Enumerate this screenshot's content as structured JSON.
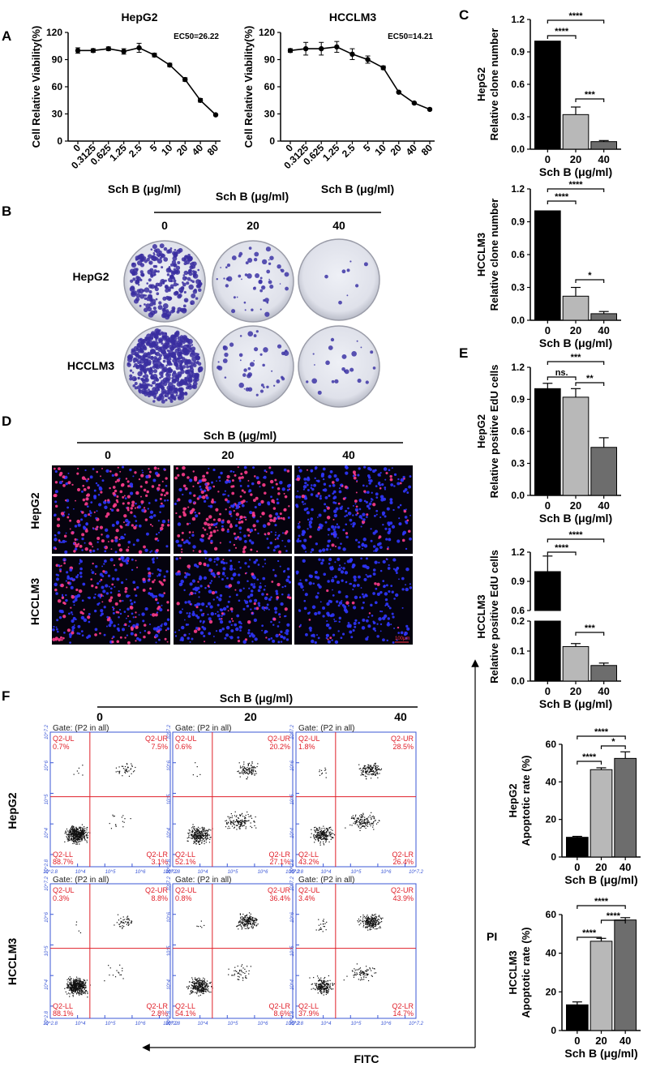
{
  "panel_letters": {
    "A": "A",
    "B": "B",
    "C": "C",
    "D": "D",
    "E": "E",
    "F": "F"
  },
  "treatment": {
    "label": "Sch B (μg/ml)",
    "doses": [
      "0",
      "20",
      "40"
    ]
  },
  "cell_lines": [
    "HepG2",
    "HCCLM3"
  ],
  "colony_label_x": "Sch B (μg/ml)",
  "flow": {
    "gate_label": "Gate: (P2 in all)",
    "quadrant_names": {
      "ul": "Q2-UL",
      "ur": "Q2-UR",
      "ll": "Q2-LL",
      "lr": "Q2-LR"
    },
    "x_axis_title": "FITC",
    "y_axis_title": "PI",
    "tick_labels": [
      "10^2.8",
      "10^4",
      "10^5",
      "10^6",
      "10^7.2"
    ],
    "rows": [
      {
        "cell_line": "HepG2",
        "plots": [
          {
            "dose": "0",
            "ul": "0.7%",
            "ur": "7.5%",
            "ll": "88.7%",
            "lr": "3.1%"
          },
          {
            "dose": "20",
            "ul": "0.6%",
            "ur": "20.2%",
            "ll": "52.1%",
            "lr": "27.1%"
          },
          {
            "dose": "40",
            "ul": "1.8%",
            "ur": "28.5%",
            "ll": "43.2%",
            "lr": "26.4%"
          }
        ]
      },
      {
        "cell_line": "HCCLM3",
        "plots": [
          {
            "dose": "0",
            "ul": "0.3%",
            "ur": "8.8%",
            "ll": "88.1%",
            "lr": "2.8%"
          },
          {
            "dose": "20",
            "ul": "0.8%",
            "ur": "36.4%",
            "ll": "54.1%",
            "lr": "8.6%"
          },
          {
            "dose": "40",
            "ul": "3.4%",
            "ur": "43.9%",
            "ll": "37.9%",
            "lr": "14.7%"
          }
        ]
      }
    ]
  },
  "scale_bar_label": "100μm",
  "chart_data": [
    {
      "id": "A1",
      "type": "line",
      "title": "HepG2",
      "annotation": "EC50=26.22",
      "xlabel": "Sch B (μg/ml)",
      "ylabel": "Cell Relative Viability(%)",
      "categories": [
        "0",
        "0.3125",
        "0.625",
        "1.25",
        "2.5",
        "5",
        "10",
        "20",
        "40",
        "80"
      ],
      "values": [
        100,
        100,
        102,
        99,
        103,
        95,
        84,
        68,
        45,
        29
      ],
      "errors": [
        3,
        2,
        2,
        3,
        5,
        2,
        2,
        2,
        2,
        1
      ],
      "ylim": [
        0,
        120
      ],
      "yticks": [
        0,
        30,
        60,
        90,
        120
      ]
    },
    {
      "id": "A2",
      "type": "line",
      "title": "HCCLM3",
      "annotation": "EC50=14.21",
      "xlabel": "Sch B (μg/ml)",
      "ylabel": "Cell Relative Viability(%)",
      "categories": [
        "0",
        "0.3125",
        "0.625",
        "1.25",
        "2.5",
        "5",
        "10",
        "20",
        "40",
        "80"
      ],
      "values": [
        100,
        102,
        102,
        104,
        96,
        90,
        81,
        54,
        42,
        35
      ],
      "errors": [
        2,
        7,
        7,
        6,
        6,
        4,
        2,
        1,
        1,
        1
      ],
      "ylim": [
        0,
        120
      ],
      "yticks": [
        0,
        30,
        60,
        90,
        120
      ]
    },
    {
      "id": "C1",
      "type": "bar",
      "cell_line": "HepG2",
      "xlabel": "Sch B (μg/ml)",
      "ylabel": "Relative clone number",
      "categories": [
        "0",
        "20",
        "40"
      ],
      "values": [
        1.0,
        0.32,
        0.07
      ],
      "errors": [
        0,
        0.07,
        0.01
      ],
      "ylim": [
        0,
        1.2
      ],
      "yticks": [
        "0.0",
        "0.3",
        "0.6",
        "0.9",
        "1.2"
      ],
      "colors": [
        "#000000",
        "#b8b8b8",
        "#6d6d6d"
      ],
      "significance": [
        {
          "from": 0,
          "to": 1,
          "label": "****"
        },
        {
          "from": 0,
          "to": 2,
          "label": "****"
        },
        {
          "from": 1,
          "to": 2,
          "label": "***"
        }
      ]
    },
    {
      "id": "C2",
      "type": "bar",
      "cell_line": "HCCLM3",
      "xlabel": "Sch B (μg/ml)",
      "ylabel": "Relative clone number",
      "categories": [
        "0",
        "20",
        "40"
      ],
      "values": [
        1.0,
        0.22,
        0.06
      ],
      "errors": [
        0,
        0.08,
        0.02
      ],
      "ylim": [
        0,
        1.2
      ],
      "yticks": [
        "0.0",
        "0.3",
        "0.6",
        "0.9",
        "1.2"
      ],
      "colors": [
        "#000000",
        "#b8b8b8",
        "#6d6d6d"
      ],
      "significance": [
        {
          "from": 0,
          "to": 1,
          "label": "****"
        },
        {
          "from": 0,
          "to": 2,
          "label": "****"
        },
        {
          "from": 1,
          "to": 2,
          "label": "*"
        }
      ]
    },
    {
      "id": "E1",
      "type": "bar",
      "cell_line": "HepG2",
      "xlabel": "Sch B (μg/ml)",
      "ylabel": "Relative positive EdU cells",
      "categories": [
        "0",
        "20",
        "40"
      ],
      "values": [
        1.0,
        0.92,
        0.45
      ],
      "errors": [
        0.05,
        0.08,
        0.09
      ],
      "ylim": [
        0,
        1.2
      ],
      "yticks": [
        "0.0",
        "0.3",
        "0.6",
        "0.9",
        "1.2"
      ],
      "colors": [
        "#000000",
        "#b8b8b8",
        "#6d6d6d"
      ],
      "significance": [
        {
          "from": 0,
          "to": 1,
          "label": "ns."
        },
        {
          "from": 0,
          "to": 2,
          "label": "***"
        },
        {
          "from": 1,
          "to": 2,
          "label": "**"
        }
      ]
    },
    {
      "id": "E2",
      "type": "bar",
      "cell_line": "HCCLM3",
      "broken_axis": true,
      "xlabel": "Sch B (μg/ml)",
      "ylabel": "Relative positive EdU cells",
      "categories": [
        "0",
        "20",
        "40"
      ],
      "values": [
        1.0,
        0.115,
        0.052
      ],
      "errors": [
        0.16,
        0.01,
        0.008
      ],
      "upper_ylim": [
        0.6,
        1.2
      ],
      "upper_yticks": [
        "0.6",
        "0.9",
        "1.2"
      ],
      "lower_ylim": [
        0,
        0.2
      ],
      "lower_yticks": [
        "0.0",
        "0.1",
        "0.2"
      ],
      "colors": [
        "#000000",
        "#b8b8b8",
        "#6d6d6d"
      ],
      "significance": [
        {
          "from": 0,
          "to": 1,
          "label": "****"
        },
        {
          "from": 0,
          "to": 2,
          "label": "****"
        },
        {
          "from": 1,
          "to": 2,
          "label": "***"
        }
      ]
    },
    {
      "id": "F1",
      "type": "bar",
      "cell_line": "HepG2",
      "xlabel": "Sch B (μg/ml)",
      "ylabel": "Apoptotic rate (%)",
      "categories": [
        "0",
        "20",
        "40"
      ],
      "values": [
        10.5,
        46.5,
        52.5
      ],
      "errors": [
        0.5,
        1,
        3.5
      ],
      "ylim": [
        0,
        60
      ],
      "yticks": [
        "0",
        "20",
        "40",
        "60"
      ],
      "colors": [
        "#000000",
        "#b8b8b8",
        "#6d6d6d"
      ],
      "significance": [
        {
          "from": 0,
          "to": 1,
          "label": "****"
        },
        {
          "from": 0,
          "to": 2,
          "label": "****"
        },
        {
          "from": 1,
          "to": 2,
          "label": "*"
        }
      ]
    },
    {
      "id": "F2",
      "type": "bar",
      "cell_line": "HCCLM3",
      "xlabel": "Sch B (μg/ml)",
      "ylabel": "Apoptotic rate (%)",
      "categories": [
        "0",
        "20",
        "40"
      ],
      "values": [
        13.3,
        46.2,
        57.2
      ],
      "errors": [
        1.5,
        1.5,
        1.2
      ],
      "ylim": [
        0,
        60
      ],
      "yticks": [
        "0",
        "20",
        "40",
        "60"
      ],
      "colors": [
        "#000000",
        "#b8b8b8",
        "#6d6d6d"
      ],
      "significance": [
        {
          "from": 0,
          "to": 1,
          "label": "****"
        },
        {
          "from": 0,
          "to": 2,
          "label": "****"
        },
        {
          "from": 1,
          "to": 2,
          "label": "****"
        }
      ]
    }
  ]
}
